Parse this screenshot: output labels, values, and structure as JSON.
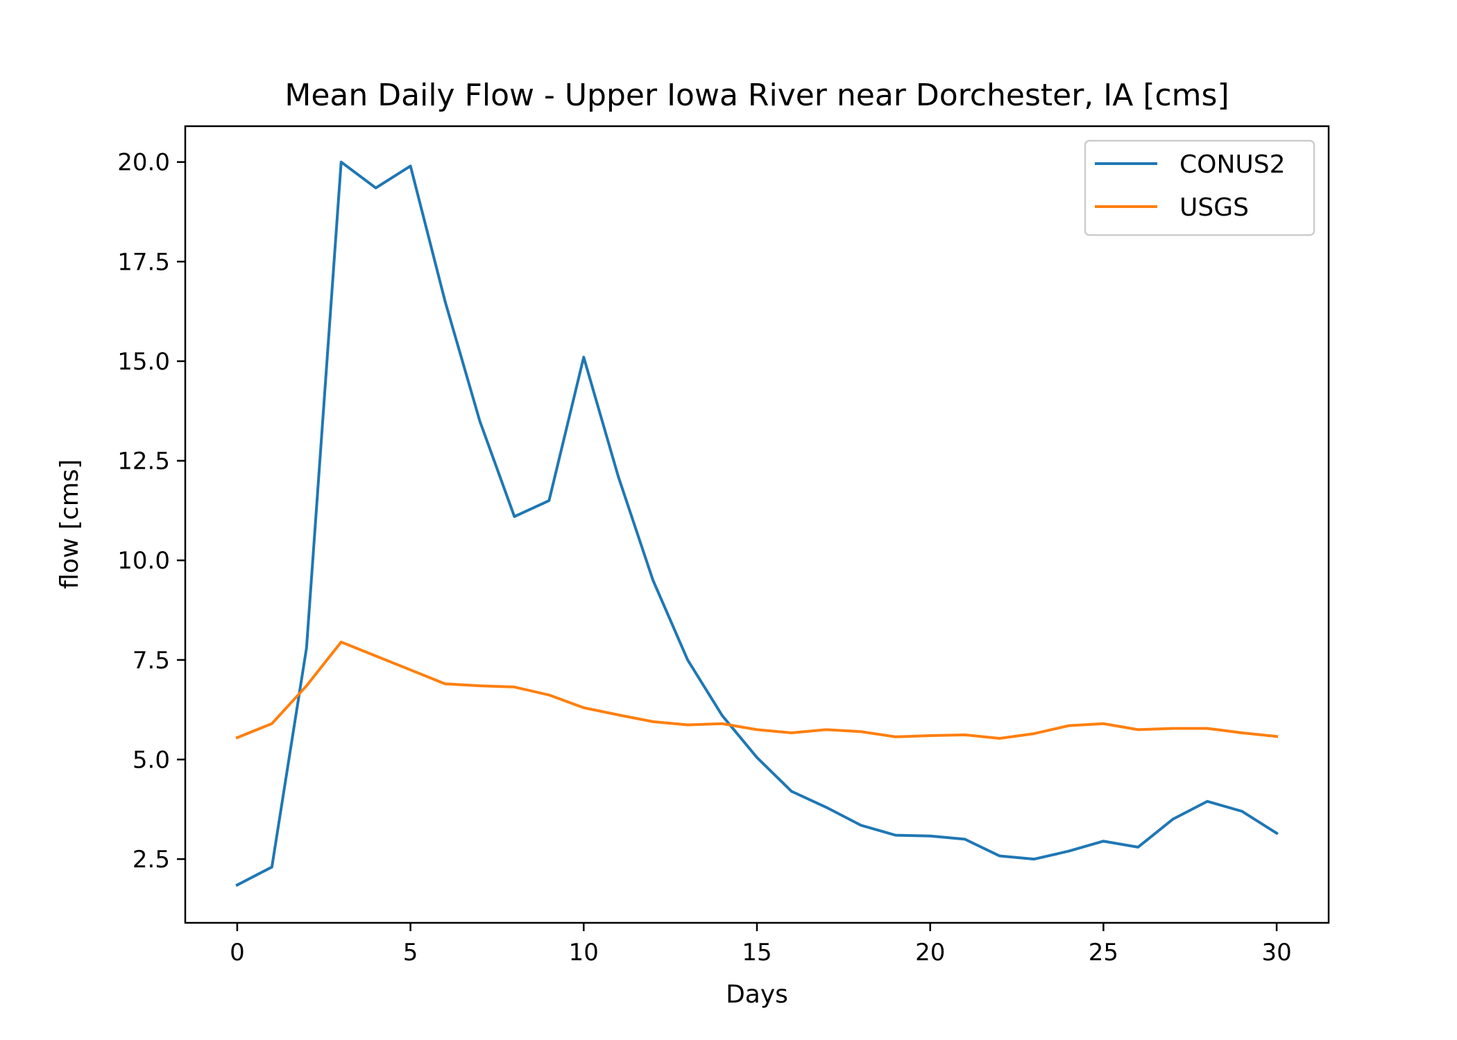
{
  "chart_data": {
    "type": "line",
    "title": "Mean Daily Flow - Upper Iowa River near Dorchester, IA [cms]",
    "xlabel": "Days",
    "ylabel": "flow [cms]",
    "xlim": [
      -1.5,
      31.5
    ],
    "ylim": [
      0.9,
      20.9
    ],
    "xticks": [
      0,
      5,
      10,
      15,
      20,
      25,
      30
    ],
    "xtick_labels": [
      "0",
      "5",
      "10",
      "15",
      "20",
      "25",
      "30"
    ],
    "yticks": [
      2.5,
      5.0,
      7.5,
      10.0,
      12.5,
      15.0,
      17.5,
      20.0
    ],
    "ytick_labels": [
      "2.5",
      "5.0",
      "7.5",
      "10.0",
      "12.5",
      "15.0",
      "17.5",
      "20.0"
    ],
    "grid": false,
    "legend_position": "top-right",
    "x": [
      0,
      1,
      2,
      3,
      4,
      5,
      6,
      7,
      8,
      9,
      10,
      11,
      12,
      13,
      14,
      15,
      16,
      17,
      18,
      19,
      20,
      21,
      22,
      23,
      24,
      25,
      26,
      27,
      28,
      29,
      30
    ],
    "series": [
      {
        "name": "CONUS2",
        "color": "#1f77b4",
        "values": [
          1.85,
          2.3,
          7.8,
          20.0,
          19.35,
          19.9,
          16.5,
          13.5,
          11.1,
          11.5,
          15.1,
          12.1,
          9.5,
          7.5,
          6.1,
          5.05,
          4.2,
          3.8,
          3.35,
          3.1,
          3.08,
          3.0,
          2.58,
          2.5,
          2.7,
          2.95,
          2.8,
          3.5,
          3.95,
          3.7,
          3.15
        ]
      },
      {
        "name": "USGS",
        "color": "#ff7f0e",
        "values": [
          5.55,
          5.9,
          6.85,
          7.95,
          7.6,
          7.25,
          6.9,
          6.85,
          6.82,
          6.62,
          6.3,
          6.12,
          5.95,
          5.87,
          5.9,
          5.75,
          5.67,
          5.75,
          5.7,
          5.57,
          5.6,
          5.62,
          5.53,
          5.65,
          5.85,
          5.9,
          5.75,
          5.78,
          5.78,
          5.67,
          5.58
        ]
      }
    ]
  }
}
